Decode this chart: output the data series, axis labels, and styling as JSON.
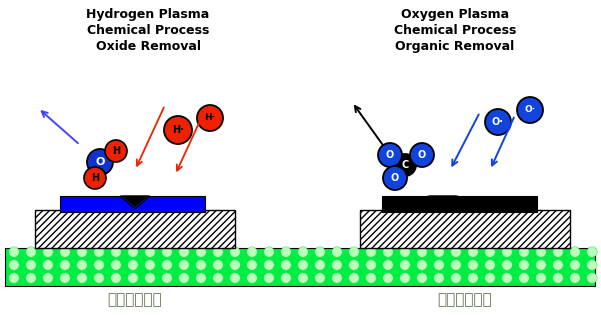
{
  "title_left": "Hydrogen Plasma\nChemical Process\nOxide Removal",
  "title_right": "Oxygen Plasma\nChemical Process\nOrganic Removal",
  "label_left": "化学清洗工艺",
  "label_right": "化学清洗工艺",
  "bg_color": "#ffffff",
  "green_color": "#00ee44",
  "red_color": "#ee2200",
  "blue_atom_color": "#1144dd",
  "text_color": "#000000",
  "label_color": "#667755"
}
